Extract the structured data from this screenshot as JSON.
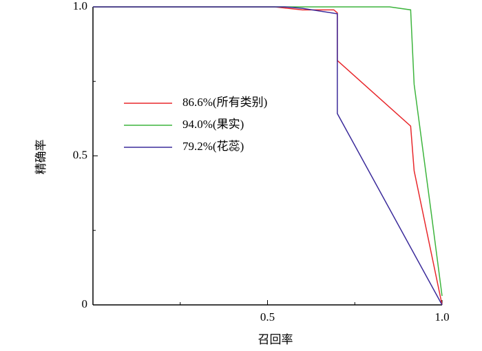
{
  "chart_data": {
    "type": "line",
    "xlabel": "召回率",
    "ylabel": "精确率",
    "xlim": [
      0,
      1
    ],
    "ylim": [
      0,
      1
    ],
    "xticks": [
      0.5,
      {
        "value": 1,
        "label": "1.0"
      }
    ],
    "yticks": [
      0,
      0.5,
      {
        "value": 1,
        "label": "1.0"
      }
    ],
    "xminorticks": [
      0.25,
      0.75
    ],
    "yminorticks": [
      0.25,
      0.75
    ],
    "series": [
      {
        "name": "86.6%(所有类别)",
        "color": "#e8262a",
        "x": [
          0,
          0.52,
          0.6,
          0.69,
          0.7,
          0.7,
          0.91,
          0.92,
          1.0
        ],
        "values": [
          1,
          1,
          0.99,
          0.99,
          0.98,
          0.82,
          0.6,
          0.45,
          0.0
        ]
      },
      {
        "name": "94.0%(果实)",
        "color": "#3cb43c",
        "x": [
          0,
          0.85,
          0.91,
          0.92,
          0.97,
          1.0
        ],
        "values": [
          1,
          1,
          0.99,
          0.74,
          0.3,
          0.03
        ]
      },
      {
        "name": "79.2%(花蕊)",
        "color": "#3a2a9a",
        "x": [
          0,
          0.55,
          0.6,
          0.7,
          0.7,
          1.0
        ],
        "values": [
          1,
          1,
          0.995,
          0.977,
          0.642,
          0.0
        ]
      }
    ]
  }
}
